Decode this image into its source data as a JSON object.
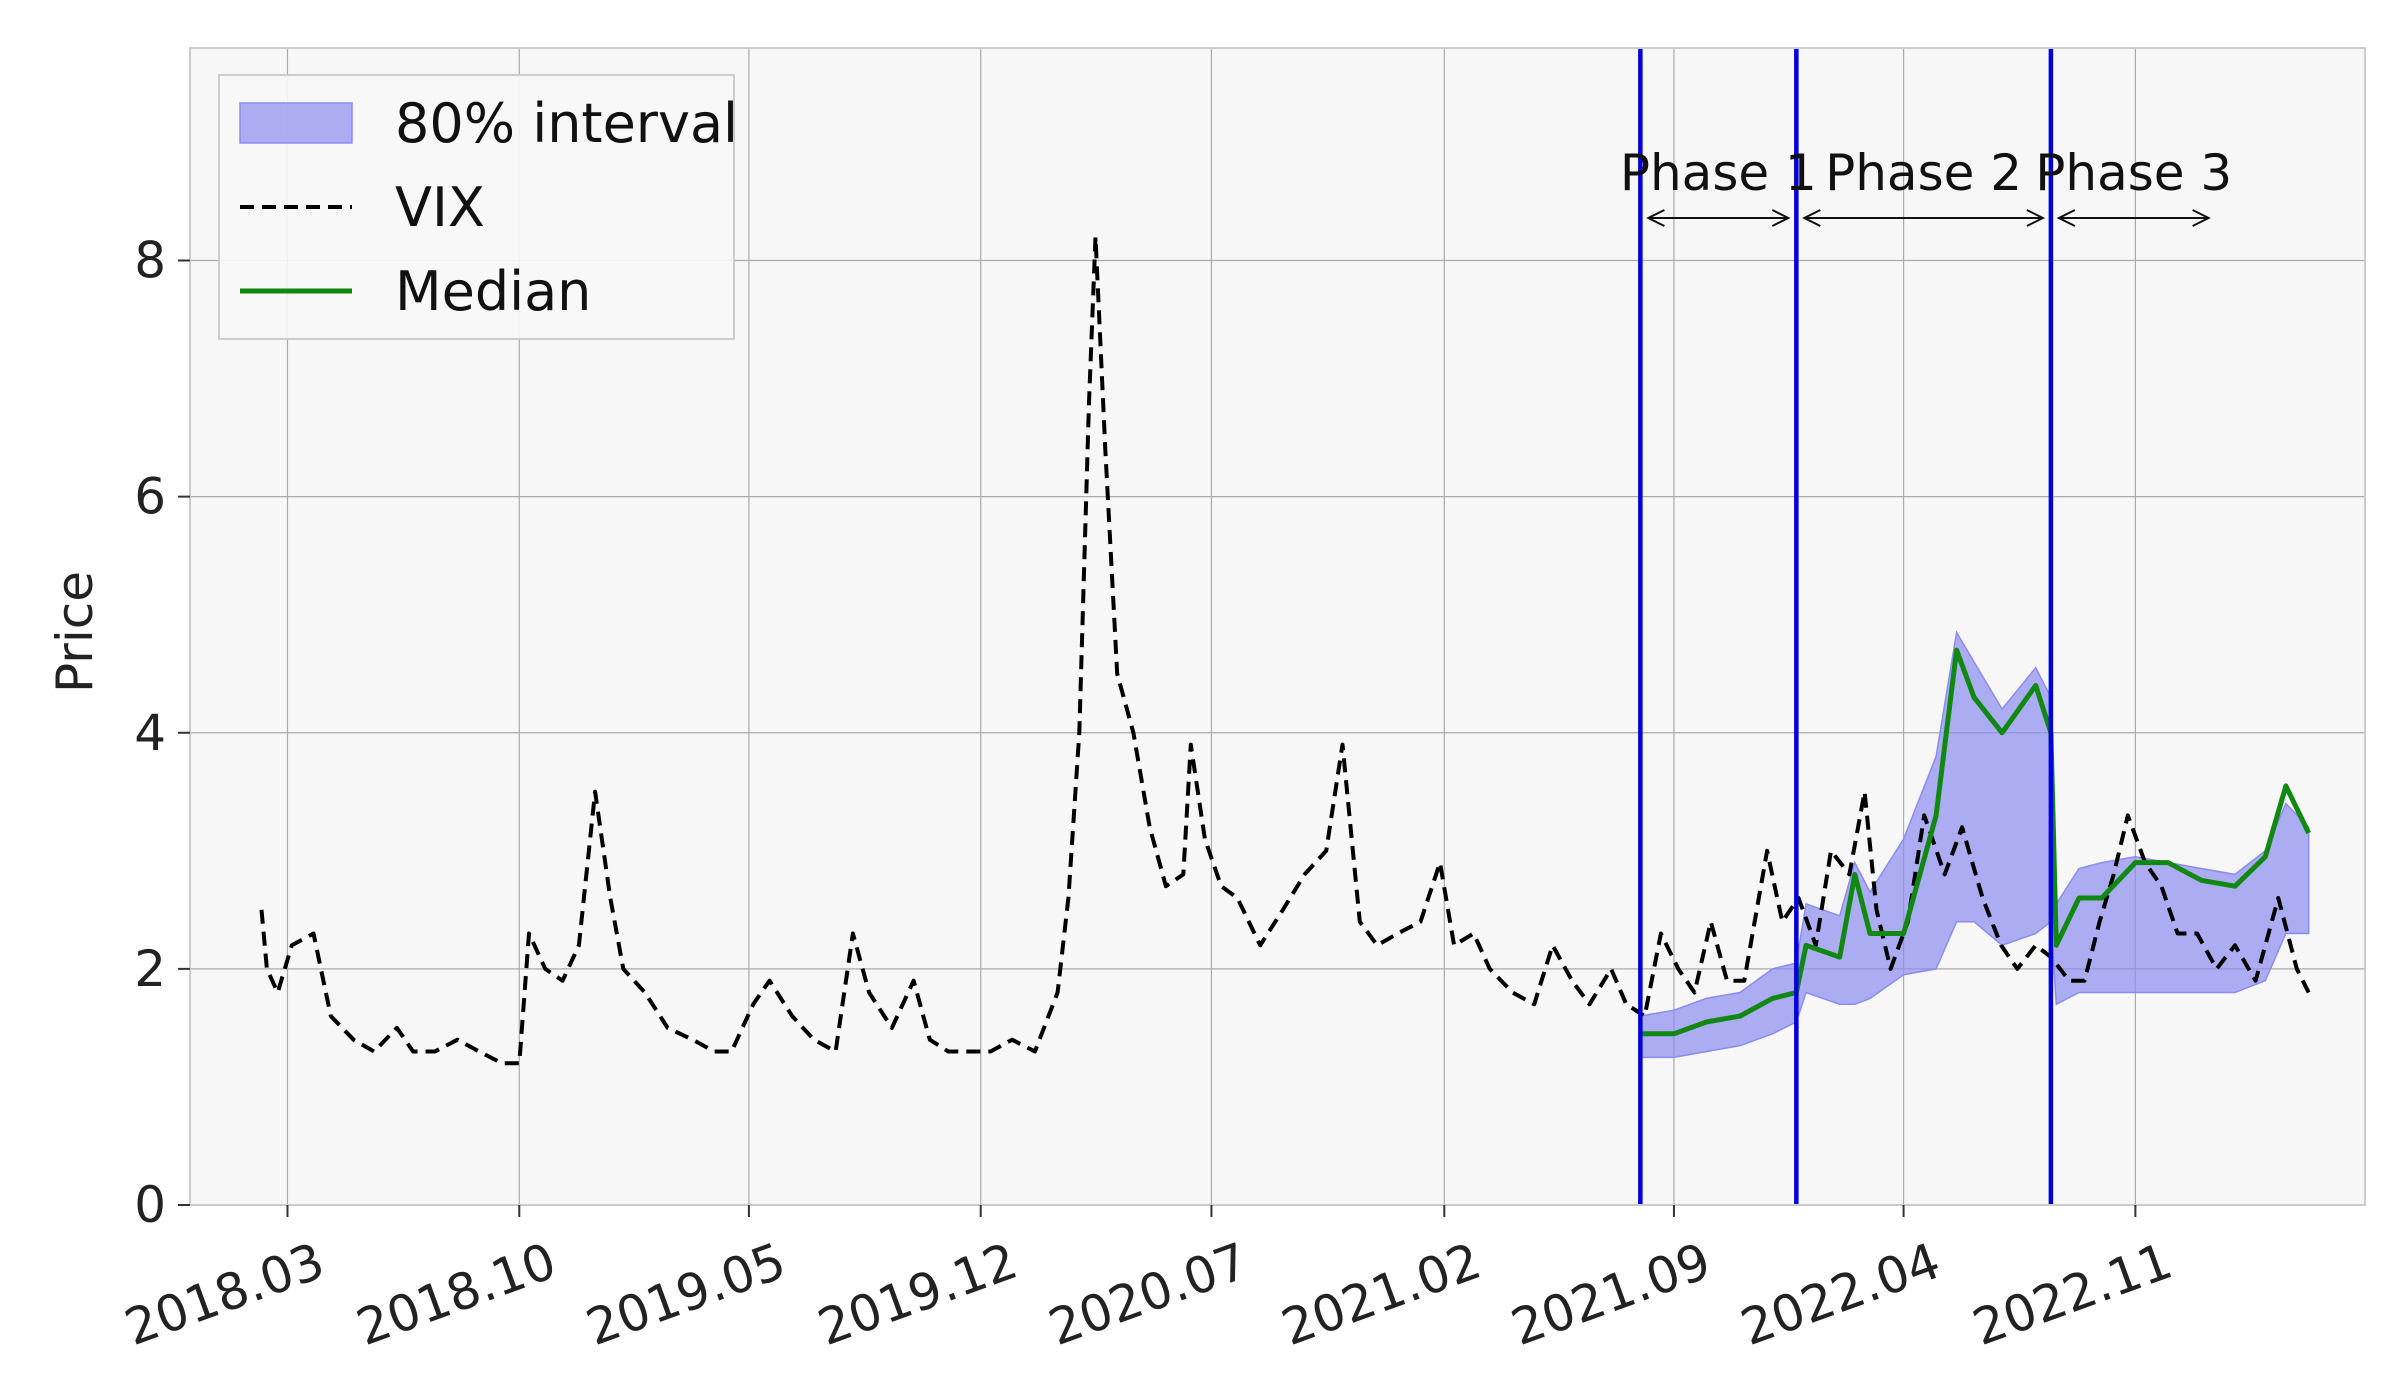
{
  "chart_data": {
    "type": "line",
    "title": "",
    "xlabel": "",
    "ylabel": "Price",
    "ylim": [
      0,
      9.8
    ],
    "yticks": [
      "0",
      "2",
      "4",
      "6",
      "8"
    ],
    "x_range": [
      "2017-12-01",
      "2023-06-01"
    ],
    "xticks": [
      {
        "date": "2018-03-01",
        "label": "2018.03"
      },
      {
        "date": "2018-10-01",
        "label": "2018.10"
      },
      {
        "date": "2019-05-01",
        "label": "2019.05"
      },
      {
        "date": "2019-12-01",
        "label": "2019.12"
      },
      {
        "date": "2020-07-01",
        "label": "2020.07"
      },
      {
        "date": "2021-02-01",
        "label": "2021.02"
      },
      {
        "date": "2021-09-01",
        "label": "2021.09"
      },
      {
        "date": "2022-04-01",
        "label": "2022.04"
      },
      {
        "date": "2022-11-01",
        "label": "2022.11"
      }
    ],
    "grid": true,
    "legend_position": "top-left",
    "legend": [
      {
        "label": "80% interval",
        "kind": "band",
        "color": "#8c8cf0"
      },
      {
        "label": "VIX",
        "kind": "dashed",
        "color": "#000000"
      },
      {
        "label": "Median",
        "kind": "line",
        "color": "#118811"
      }
    ],
    "series": [
      {
        "name": "VIX",
        "style": "dashed",
        "color": "#000000",
        "x": [
          "2018-02-05",
          "2018-02-10",
          "2018-02-20",
          "2018-03-05",
          "2018-03-25",
          "2018-04-10",
          "2018-05-01",
          "2018-05-20",
          "2018-06-10",
          "2018-06-25",
          "2018-07-15",
          "2018-08-05",
          "2018-08-25",
          "2018-09-15",
          "2018-10-01",
          "2018-10-10",
          "2018-10-25",
          "2018-11-10",
          "2018-11-25",
          "2018-12-10",
          "2018-12-24",
          "2019-01-05",
          "2019-01-25",
          "2019-02-15",
          "2019-03-10",
          "2019-03-30",
          "2019-04-15",
          "2019-05-05",
          "2019-05-20",
          "2019-06-10",
          "2019-06-30",
          "2019-07-20",
          "2019-08-05",
          "2019-08-20",
          "2019-09-10",
          "2019-09-30",
          "2019-10-15",
          "2019-11-01",
          "2019-11-20",
          "2019-12-10",
          "2019-12-30",
          "2020-01-20",
          "2020-02-10",
          "2020-02-20",
          "2020-03-01",
          "2020-03-10",
          "2020-03-16",
          "2020-03-25",
          "2020-04-05",
          "2020-04-20",
          "2020-05-05",
          "2020-05-20",
          "2020-06-05",
          "2020-06-12",
          "2020-06-25",
          "2020-07-10",
          "2020-07-25",
          "2020-08-15",
          "2020-09-05",
          "2020-09-25",
          "2020-10-15",
          "2020-10-30",
          "2020-11-15",
          "2020-12-01",
          "2020-12-20",
          "2021-01-10",
          "2021-01-28",
          "2021-02-10",
          "2021-02-28",
          "2021-03-15",
          "2021-04-05",
          "2021-04-25",
          "2021-05-12",
          "2021-05-30",
          "2021-06-15",
          "2021-07-05",
          "2021-07-19",
          "2021-08-05",
          "2021-08-20",
          "2021-09-05",
          "2021-09-20",
          "2021-10-05",
          "2021-10-20",
          "2021-11-05",
          "2021-11-26",
          "2021-12-10",
          "2021-12-25",
          "2022-01-10",
          "2022-01-24",
          "2022-02-10",
          "2022-02-24",
          "2022-03-07",
          "2022-03-20",
          "2022-04-05",
          "2022-04-20",
          "2022-05-09",
          "2022-05-25",
          "2022-06-13",
          "2022-06-30",
          "2022-07-15",
          "2022-08-01",
          "2022-08-15",
          "2022-09-01",
          "2022-09-15",
          "2022-09-29",
          "2022-10-12",
          "2022-10-25",
          "2022-11-10",
          "2022-11-25",
          "2022-12-10",
          "2022-12-28",
          "2023-01-15",
          "2023-02-01",
          "2023-02-20",
          "2023-03-13",
          "2023-03-30",
          "2023-04-10"
        ],
        "y": [
          2.5,
          2.0,
          1.8,
          2.2,
          2.3,
          1.6,
          1.4,
          1.3,
          1.5,
          1.3,
          1.3,
          1.4,
          1.3,
          1.2,
          1.2,
          2.3,
          2.0,
          1.9,
          2.2,
          3.5,
          2.6,
          2.0,
          1.8,
          1.5,
          1.4,
          1.3,
          1.3,
          1.7,
          1.9,
          1.6,
          1.4,
          1.3,
          2.3,
          1.8,
          1.5,
          1.9,
          1.4,
          1.3,
          1.3,
          1.3,
          1.4,
          1.3,
          1.8,
          2.6,
          4.0,
          6.8,
          8.2,
          6.4,
          4.5,
          4.0,
          3.2,
          2.7,
          2.8,
          3.9,
          3.1,
          2.7,
          2.6,
          2.2,
          2.5,
          2.8,
          3.0,
          3.9,
          2.4,
          2.2,
          2.3,
          2.4,
          2.9,
          2.2,
          2.3,
          2.0,
          1.8,
          1.7,
          2.2,
          1.9,
          1.7,
          2.0,
          1.7,
          1.6,
          2.3,
          2.0,
          1.8,
          2.4,
          1.9,
          1.9,
          3.0,
          2.4,
          2.6,
          2.2,
          3.0,
          2.8,
          3.5,
          2.5,
          2.0,
          2.4,
          3.3,
          2.8,
          3.2,
          2.6,
          2.2,
          2.0,
          2.2,
          2.1,
          1.9,
          1.9,
          2.4,
          2.8,
          3.3,
          2.9,
          2.7,
          2.3,
          2.3,
          2.0,
          2.2,
          1.9,
          2.6,
          2.0,
          1.8
        ]
      },
      {
        "name": "Median",
        "style": "solid",
        "color": "#118811",
        "x": [
          "2021-08-01",
          "2021-09-01",
          "2021-10-01",
          "2021-11-01",
          "2021-12-01",
          "2021-12-23",
          "2022-01-01",
          "2022-02-01",
          "2022-02-15",
          "2022-03-01",
          "2022-04-01",
          "2022-05-01",
          "2022-05-20",
          "2022-06-05",
          "2022-07-01",
          "2022-08-01",
          "2022-08-15",
          "2022-08-20",
          "2022-09-10",
          "2022-10-01",
          "2022-11-01",
          "2022-12-01",
          "2023-01-01",
          "2023-02-01",
          "2023-03-01",
          "2023-03-20",
          "2023-04-10"
        ],
        "y": [
          1.45,
          1.45,
          1.55,
          1.6,
          1.75,
          1.8,
          2.2,
          2.1,
          2.8,
          2.3,
          2.3,
          3.3,
          4.7,
          4.3,
          4.0,
          4.4,
          4.0,
          2.2,
          2.6,
          2.6,
          2.9,
          2.9,
          2.75,
          2.7,
          2.95,
          3.55,
          3.15
        ]
      }
    ],
    "bands": [
      {
        "name": "80% interval",
        "color": "#8c8cf0",
        "x": [
          "2021-08-01",
          "2021-09-01",
          "2021-10-01",
          "2021-11-01",
          "2021-12-01",
          "2021-12-23",
          "2022-01-01",
          "2022-02-01",
          "2022-02-15",
          "2022-03-01",
          "2022-04-01",
          "2022-05-01",
          "2022-05-20",
          "2022-06-05",
          "2022-07-01",
          "2022-08-01",
          "2022-08-15",
          "2022-08-20",
          "2022-09-10",
          "2022-10-01",
          "2022-11-01",
          "2022-12-01",
          "2023-01-01",
          "2023-02-01",
          "2023-03-01",
          "2023-03-20",
          "2023-04-10"
        ],
        "lower": [
          1.25,
          1.25,
          1.3,
          1.35,
          1.45,
          1.55,
          1.8,
          1.7,
          1.7,
          1.75,
          1.95,
          2.0,
          2.4,
          2.4,
          2.2,
          2.3,
          2.4,
          1.7,
          1.8,
          1.8,
          1.8,
          1.8,
          1.8,
          1.8,
          1.9,
          2.3,
          2.3
        ],
        "upper": [
          1.6,
          1.65,
          1.75,
          1.8,
          2.0,
          2.05,
          2.55,
          2.45,
          2.9,
          2.65,
          3.1,
          3.8,
          4.85,
          4.6,
          4.2,
          4.55,
          4.3,
          2.55,
          2.85,
          2.9,
          2.95,
          2.9,
          2.85,
          2.8,
          3.0,
          3.4,
          3.2
        ]
      }
    ],
    "vlines": [
      {
        "date": "2021-08-01",
        "color": "#0000dd"
      },
      {
        "date": "2021-12-23",
        "color": "#0000dd"
      },
      {
        "date": "2022-08-15",
        "color": "#0000dd"
      }
    ],
    "phases": [
      {
        "label": "Phase 1",
        "start": "2021-08-01",
        "end": "2021-12-23"
      },
      {
        "label": "Phase 2",
        "start": "2021-12-23",
        "end": "2022-08-15"
      },
      {
        "label": "Phase 3",
        "start": "2022-08-15",
        "end": "2023-01-15"
      }
    ]
  }
}
